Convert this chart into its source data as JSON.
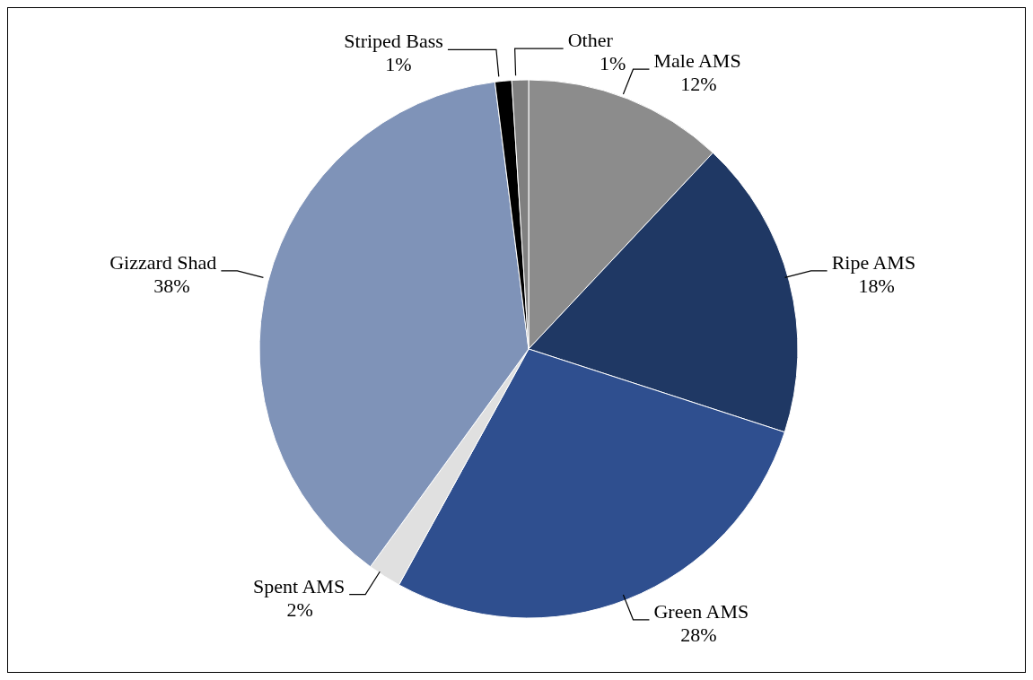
{
  "chart_data": {
    "type": "pie",
    "categories": [
      "Male AMS",
      "Ripe AMS",
      "Green AMS",
      "Spent AMS",
      "Gizzard Shad",
      "Striped Bass",
      "Other"
    ],
    "values": [
      12,
      18,
      28,
      2,
      38,
      1,
      1
    ],
    "value_labels": [
      "12%",
      "18%",
      "28%",
      "2%",
      "38%",
      "1%",
      "1%"
    ],
    "colors": [
      "#8c8c8c",
      "#1f3864",
      "#2f4f8f",
      "#e0e0e0",
      "#7f93b8",
      "#000000",
      "#808080"
    ],
    "legend": false
  }
}
